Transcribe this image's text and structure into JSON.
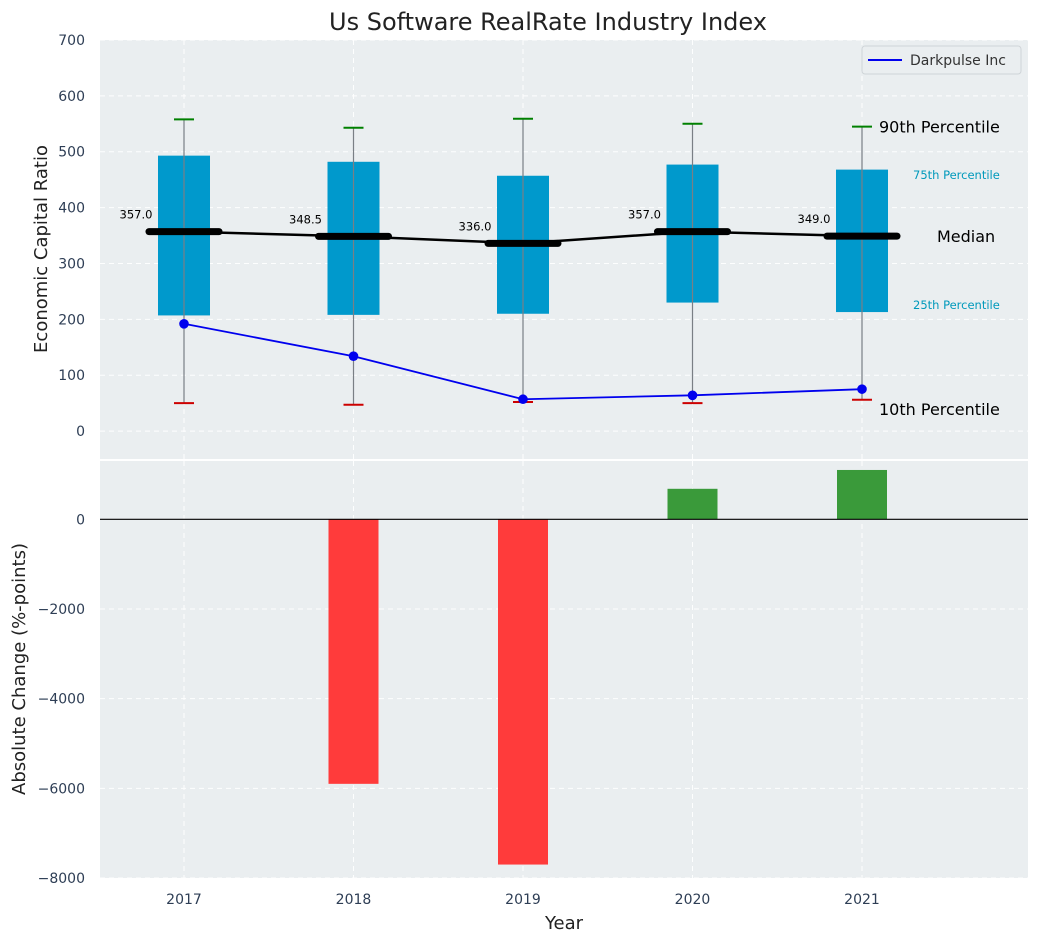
{
  "chart_data": [
    {
      "panel": "top",
      "type": "box",
      "title": "Us Software RealRate Industry Index",
      "ylabel": "Economic Capital Ratio",
      "xlabel": "",
      "categories": [
        "2017",
        "2018",
        "2019",
        "2020",
        "2021"
      ],
      "ylim": [
        -50,
        700
      ],
      "yticks": [
        0,
        100,
        200,
        300,
        400,
        500,
        600,
        700
      ],
      "grid": true,
      "boxes": [
        {
          "p10": 50,
          "p25": 207,
          "median": 357.0,
          "p75": 493,
          "p90": 558
        },
        {
          "p10": 47,
          "p25": 208,
          "median": 348.5,
          "p75": 482,
          "p90": 543
        },
        {
          "p10": 52,
          "p25": 210,
          "median": 336.0,
          "p75": 457,
          "p90": 559
        },
        {
          "p10": 50,
          "p25": 230,
          "median": 357.0,
          "p75": 477,
          "p90": 550
        },
        {
          "p10": 56,
          "p25": 213,
          "median": 349.0,
          "p75": 468,
          "p90": 545
        }
      ],
      "median_labels": [
        "357.0",
        "348.5",
        "336.0",
        "357.0",
        "349.0"
      ],
      "series": [
        {
          "name": "Darkpulse Inc",
          "color": "#0000ee",
          "values": [
            192,
            134,
            57,
            64,
            75
          ]
        }
      ],
      "legend": {
        "position": "top-right",
        "entries": [
          "Darkpulse Inc"
        ]
      },
      "annotations": {
        "p90": "90th Percentile",
        "p75": "75th Percentile",
        "median": "Median",
        "p25": "25th Percentile",
        "p10": "10th Percentile"
      },
      "colors": {
        "box": "#0099cc",
        "median": "#000000",
        "p90_cap": "#008000",
        "p10_cap": "#cc0000",
        "annotation_accent": "#0099bb"
      }
    },
    {
      "panel": "bottom",
      "type": "bar",
      "ylabel": "Absolute Change (%-points)",
      "xlabel": "Year",
      "categories": [
        "2017",
        "2018",
        "2019",
        "2020",
        "2021"
      ],
      "values": [
        0,
        -5900,
        -7700,
        680,
        1100
      ],
      "ylim": [
        -8000,
        1300
      ],
      "yticks": [
        0,
        -2000,
        -4000,
        -6000,
        -8000
      ],
      "grid": true,
      "colors": {
        "positive": "#3a9a3a",
        "negative": "#ff3b3b"
      }
    }
  ]
}
